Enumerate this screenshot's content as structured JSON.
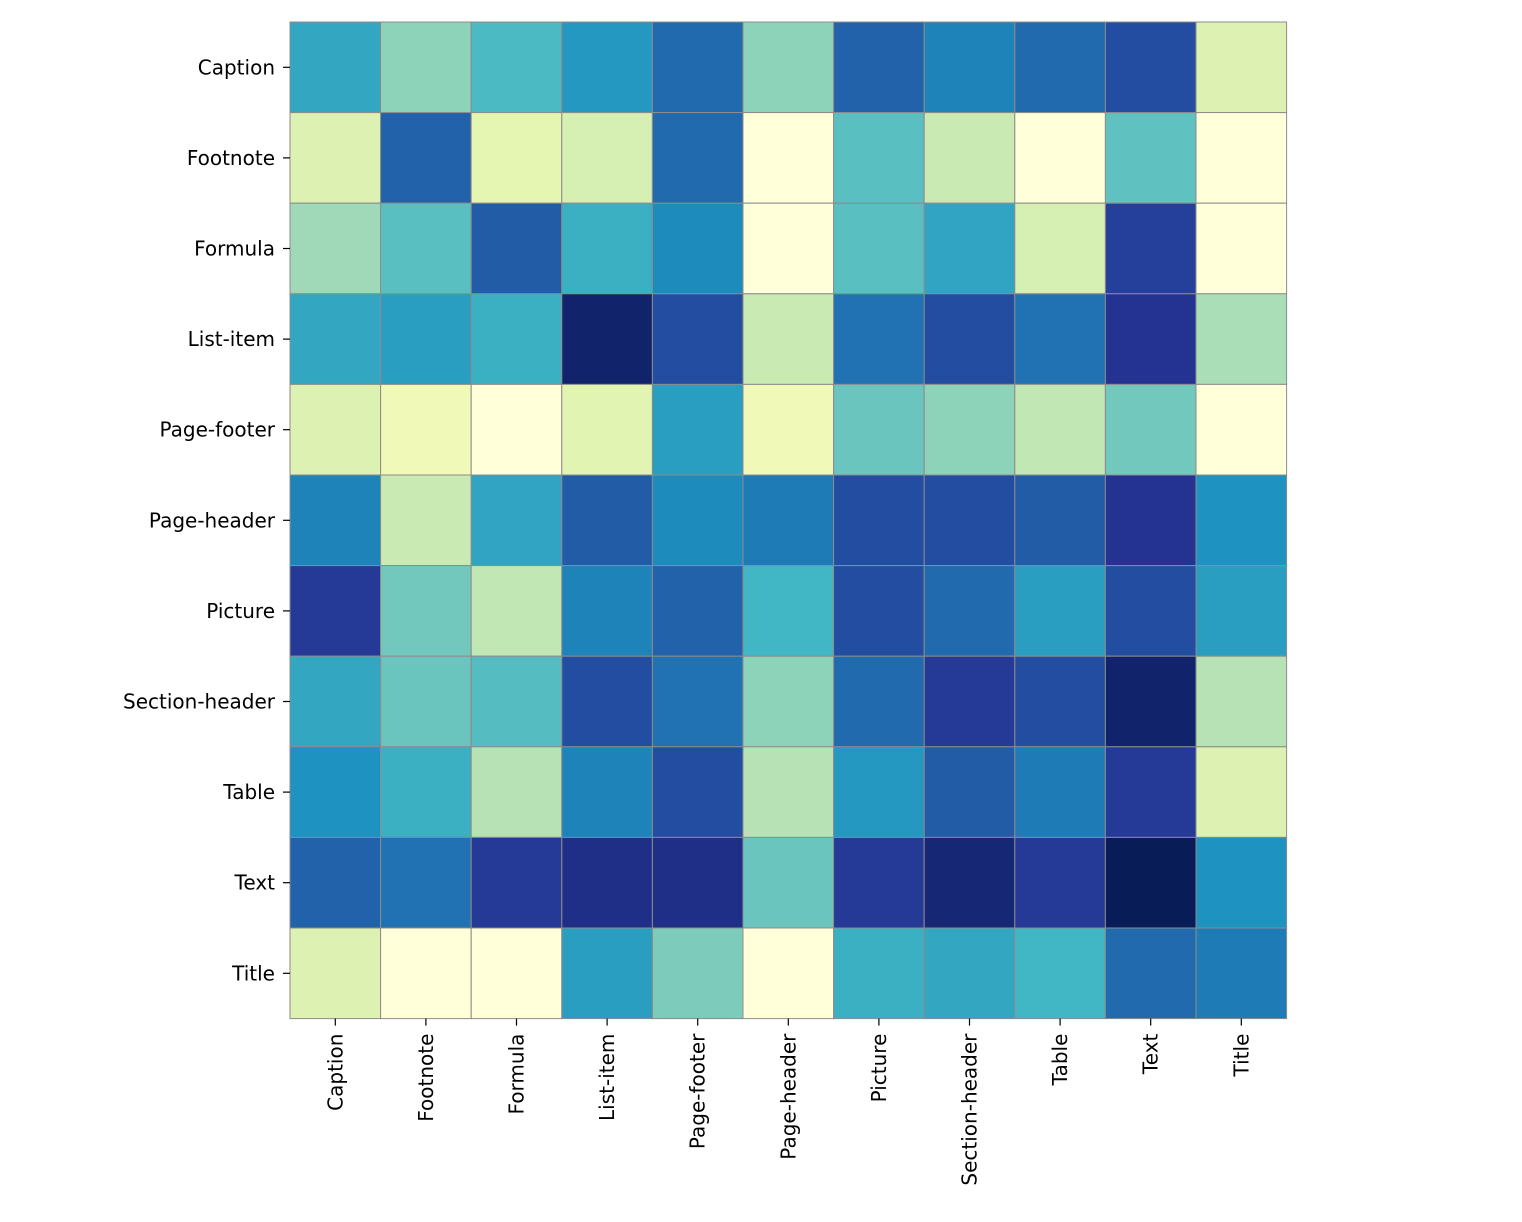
{
  "chart_data": {
    "type": "heatmap",
    "title": "",
    "xlabel": "",
    "ylabel": "",
    "colormap": "YlGnBu",
    "value_range": [
      0,
      1
    ],
    "grid": false,
    "rows": [
      "Caption",
      "Footnote",
      "Formula",
      "List-item",
      "Page-footer",
      "Page-header",
      "Picture",
      "Section-header",
      "Table",
      "Text",
      "Title"
    ],
    "columns": [
      "Caption",
      "Footnote",
      "Formula",
      "List-item",
      "Page-footer",
      "Page-header",
      "Picture",
      "Section-header",
      "Table",
      "Text",
      "Title"
    ],
    "values": [
      [
        0.55,
        0.35,
        0.48,
        0.6,
        0.72,
        0.35,
        0.74,
        0.66,
        0.72,
        0.8,
        0.18
      ],
      [
        0.18,
        0.74,
        0.15,
        0.2,
        0.72,
        0.0,
        0.45,
        0.24,
        0.0,
        0.44,
        0.0
      ],
      [
        0.32,
        0.45,
        0.76,
        0.52,
        0.64,
        0.0,
        0.45,
        0.56,
        0.2,
        0.84,
        0.0
      ],
      [
        0.55,
        0.58,
        0.52,
        0.96,
        0.8,
        0.24,
        0.7,
        0.8,
        0.7,
        0.88,
        0.3
      ],
      [
        0.18,
        0.1,
        0.0,
        0.16,
        0.58,
        0.1,
        0.42,
        0.35,
        0.26,
        0.4,
        0.0
      ],
      [
        0.66,
        0.24,
        0.56,
        0.76,
        0.64,
        0.68,
        0.8,
        0.8,
        0.76,
        0.88,
        0.62
      ],
      [
        0.86,
        0.4,
        0.26,
        0.66,
        0.74,
        0.5,
        0.8,
        0.72,
        0.58,
        0.8,
        0.58
      ],
      [
        0.55,
        0.42,
        0.46,
        0.8,
        0.7,
        0.35,
        0.72,
        0.86,
        0.8,
        0.96,
        0.28
      ],
      [
        0.62,
        0.52,
        0.28,
        0.66,
        0.8,
        0.28,
        0.6,
        0.76,
        0.68,
        0.86,
        0.18
      ],
      [
        0.74,
        0.7,
        0.86,
        0.9,
        0.9,
        0.42,
        0.86,
        0.94,
        0.86,
        1.0,
        0.62
      ],
      [
        0.18,
        0.0,
        0.0,
        0.58,
        0.38,
        0.0,
        0.52,
        0.55,
        0.5,
        0.72,
        0.68
      ]
    ]
  }
}
